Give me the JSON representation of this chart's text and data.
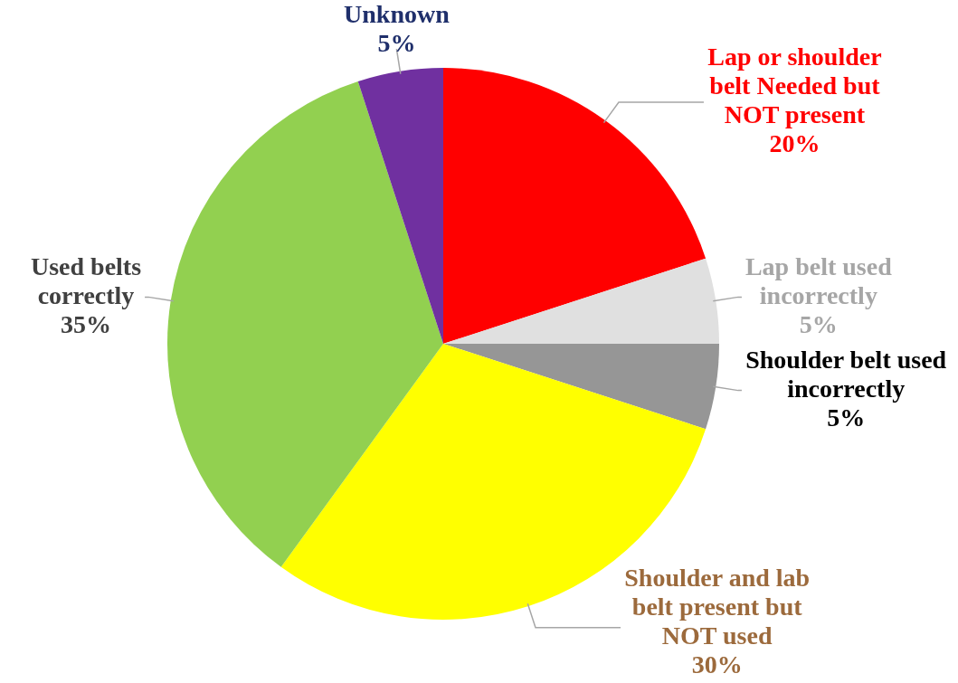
{
  "chart_data": {
    "type": "pie",
    "categories": [
      "Lap or shoulder belt Needed but NOT present",
      "Lap belt used incorrectly",
      "Shoulder belt used incorrectly",
      "Shoulder and lab belt present but NOT used",
      "Used belts correctly",
      "Unknown"
    ],
    "values": [
      20,
      5,
      5,
      30,
      35,
      5
    ],
    "colors": [
      "#ff0000",
      "#e0e0e0",
      "#969696",
      "#ffff00",
      "#92d050",
      "#7030a0"
    ],
    "value_labels": [
      "20%",
      "5%",
      "5%",
      "30%",
      "35%",
      "5%"
    ]
  }
}
